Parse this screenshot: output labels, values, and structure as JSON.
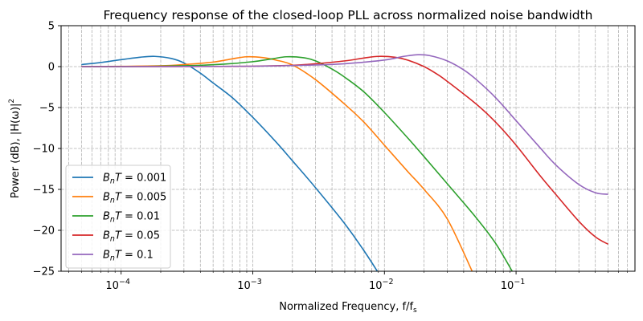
{
  "chart_data": {
    "type": "line",
    "title": "Frequency response of the closed-loop PLL across normalized noise bandwidth",
    "xlabel": "Normalized Frequency, f/f",
    "xlabel_sub": "s",
    "ylabel": "Power (dB), |H(ω)|",
    "ylabel_sup": "2",
    "xscale": "log",
    "xlim": [
      3.5e-05,
      0.8
    ],
    "ylim": [
      -25,
      5
    ],
    "xticks": [
      {
        "value": 0.0001,
        "base": "10",
        "exp": "−4"
      },
      {
        "value": 0.001,
        "base": "10",
        "exp": "−3"
      },
      {
        "value": 0.01,
        "base": "10",
        "exp": "−2"
      },
      {
        "value": 0.1,
        "base": "10",
        "exp": "−1"
      }
    ],
    "yticks": [
      {
        "value": 5,
        "label": "5"
      },
      {
        "value": 0,
        "label": "0"
      },
      {
        "value": -5,
        "label": "−5"
      },
      {
        "value": -10,
        "label": "−10"
      },
      {
        "value": -15,
        "label": "−15"
      },
      {
        "value": -20,
        "label": "−20"
      },
      {
        "value": -25,
        "label": "−25"
      }
    ],
    "grid": true,
    "legend_position": "lower-left",
    "series": [
      {
        "name": "B_nT = 0.001",
        "color": "#1f77b4",
        "x": [
          5e-05,
          7e-05,
          0.0001,
          0.00014,
          0.00018,
          0.00024,
          0.0003,
          0.0004,
          0.0005,
          0.0007,
          0.001,
          0.0015,
          0.002,
          0.003,
          0.005,
          0.007,
          0.009
        ],
        "y": [
          0.25,
          0.5,
          0.85,
          1.15,
          1.25,
          1.0,
          0.45,
          -0.8,
          -2.0,
          -3.8,
          -6.2,
          -9.2,
          -11.5,
          -14.8,
          -19.2,
          -22.5,
          -25.2
        ]
      },
      {
        "name": "B_nT = 0.005",
        "color": "#ff7f0e",
        "x": [
          5e-05,
          0.0001,
          0.0002,
          0.0003,
          0.0005,
          0.0007,
          0.0009,
          0.0012,
          0.0015,
          0.002,
          0.003,
          0.005,
          0.007,
          0.01,
          0.015,
          0.02,
          0.03,
          0.047
        ],
        "y": [
          0.0,
          0.03,
          0.1,
          0.25,
          0.55,
          0.95,
          1.2,
          1.1,
          0.8,
          0.2,
          -1.6,
          -4.6,
          -6.8,
          -9.6,
          -12.8,
          -15.0,
          -18.6,
          -25.2
        ]
      },
      {
        "name": "B_nT = 0.01",
        "color": "#2ca02c",
        "x": [
          5e-05,
          0.0001,
          0.0003,
          0.0006,
          0.001,
          0.0014,
          0.0018,
          0.0024,
          0.003,
          0.004,
          0.005,
          0.007,
          0.01,
          0.015,
          0.02,
          0.03,
          0.05,
          0.07,
          0.095
        ],
        "y": [
          0.0,
          0.0,
          0.1,
          0.3,
          0.6,
          0.95,
          1.2,
          1.1,
          0.7,
          -0.3,
          -1.3,
          -3.1,
          -5.6,
          -8.7,
          -11.0,
          -14.3,
          -18.5,
          -21.6,
          -25.2
        ]
      },
      {
        "name": "B_nT = 0.05",
        "color": "#d62728",
        "x": [
          5e-05,
          0.0001,
          0.0005,
          0.001,
          0.002,
          0.003,
          0.005,
          0.007,
          0.009,
          0.012,
          0.015,
          0.02,
          0.025,
          0.03,
          0.05,
          0.07,
          0.1,
          0.15,
          0.2,
          0.3,
          0.4,
          0.5
        ],
        "y": [
          0.0,
          0.0,
          0.02,
          0.05,
          0.15,
          0.35,
          0.7,
          1.05,
          1.25,
          1.15,
          0.8,
          0.0,
          -0.9,
          -1.8,
          -4.6,
          -6.8,
          -9.6,
          -13.2,
          -15.6,
          -18.9,
          -20.8,
          -21.7
        ]
      },
      {
        "name": "B_nT = 0.1",
        "color": "#9467bd",
        "x": [
          5e-05,
          0.0001,
          0.001,
          0.003,
          0.005,
          0.01,
          0.014,
          0.018,
          0.022,
          0.03,
          0.04,
          0.05,
          0.07,
          0.1,
          0.15,
          0.2,
          0.3,
          0.4,
          0.5
        ],
        "y": [
          0.0,
          0.0,
          0.05,
          0.2,
          0.35,
          0.8,
          1.25,
          1.45,
          1.35,
          0.7,
          -0.4,
          -1.6,
          -3.8,
          -6.6,
          -9.8,
          -12.0,
          -14.4,
          -15.4,
          -15.6
        ]
      }
    ]
  }
}
